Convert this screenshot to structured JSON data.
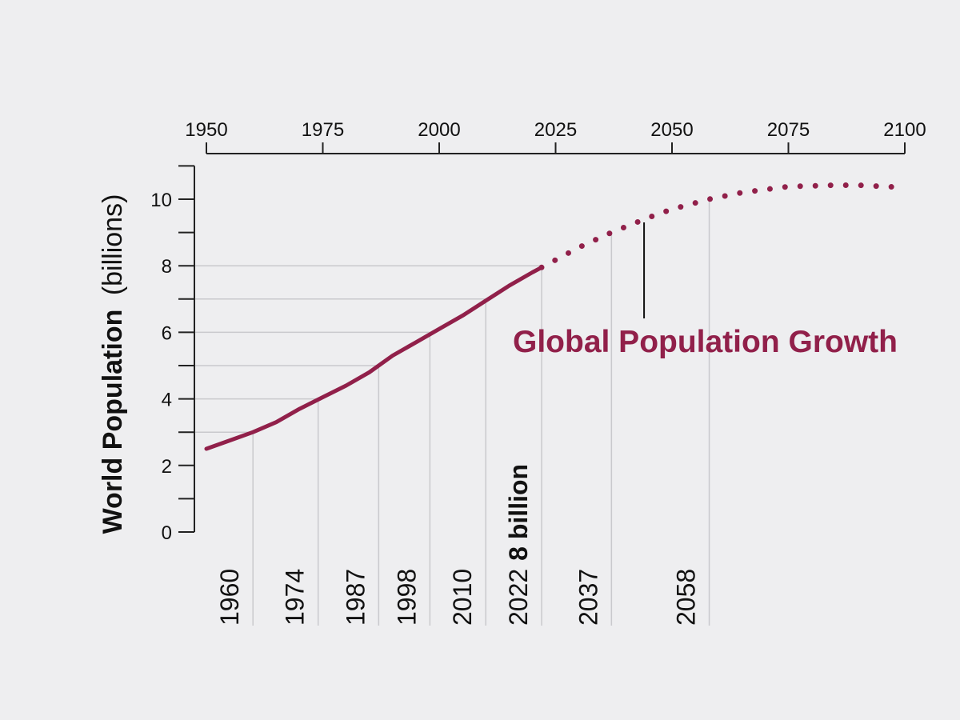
{
  "colors": {
    "background": "#eeeef0",
    "series": "#91204a",
    "axis": "#222222",
    "grid": "#c9c9cd",
    "text": "#111111"
  },
  "chart_data": {
    "type": "line",
    "title": "Global Population Growth",
    "ylabel_bold": "World Population",
    "ylabel_unit": "(billions)",
    "x_axis_position": "top",
    "xlim": [
      1950,
      2100
    ],
    "ylim": [
      0,
      11
    ],
    "x_ticks": [
      1950,
      1975,
      2000,
      2025,
      2050,
      2075,
      2100
    ],
    "y_ticks": [
      0,
      2,
      4,
      6,
      8,
      10
    ],
    "y_minor_ticks": [
      1,
      3,
      5,
      7,
      9,
      11
    ],
    "grid": "milestone guides only",
    "series": [
      {
        "style": "solid",
        "x": [
          1950,
          1955,
          1960,
          1965,
          1970,
          1975,
          1980,
          1985,
          1990,
          1995,
          2000,
          2005,
          2010,
          2015,
          2020,
          2022
        ],
        "y": [
          2.5,
          2.75,
          3.0,
          3.3,
          3.7,
          4.05,
          4.4,
          4.8,
          5.3,
          5.7,
          6.1,
          6.5,
          6.95,
          7.4,
          7.8,
          7.95
        ]
      },
      {
        "style": "dotted",
        "x": [
          2022,
          2030,
          2037,
          2045,
          2050,
          2058,
          2065,
          2075,
          2085,
          2090,
          2100
        ],
        "y": [
          7.95,
          8.55,
          9.0,
          9.45,
          9.7,
          10.0,
          10.2,
          10.38,
          10.42,
          10.42,
          10.35
        ]
      }
    ],
    "milestones": [
      {
        "year": 1960,
        "label": "1960",
        "population": 3
      },
      {
        "year": 1974,
        "label": "1974",
        "population": 4
      },
      {
        "year": 1987,
        "label": "1987",
        "population": 5
      },
      {
        "year": 1998,
        "label": "1998",
        "population": 6
      },
      {
        "year": 2010,
        "label": "2010",
        "population": 7
      },
      {
        "year": 2022,
        "label": "2022",
        "population": 8,
        "note": "8 billion"
      },
      {
        "year": 2037,
        "label": "2037",
        "population": 9
      },
      {
        "year": 2058,
        "label": "2058",
        "population": 10
      }
    ],
    "annotation": {
      "text": "Global Population Growth",
      "pointer_year": 2044,
      "pointer_population": 9.4
    }
  }
}
